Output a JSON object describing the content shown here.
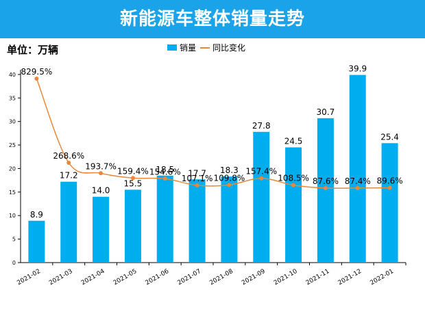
{
  "header": {
    "title": "新能源车整体销量走势"
  },
  "unit_label": "单位：万辆",
  "colors": {
    "banner": "#1aa3e8",
    "bar": "#00aeef",
    "line": "#e8883a",
    "point": "#e8883a",
    "axis": "#000000"
  },
  "chart_data": {
    "type": "bar",
    "categories": [
      "2021-02",
      "2021-03",
      "2021-04",
      "2021-05",
      "2021-06",
      "2021-07",
      "2021-08",
      "2021-09",
      "2021-10",
      "2021-11",
      "2021-12",
      "2022-01"
    ],
    "series": [
      {
        "name": "销量",
        "type": "bar",
        "values": [
          8.9,
          17.2,
          14.0,
          15.5,
          18.5,
          17.7,
          18.3,
          27.8,
          24.5,
          30.7,
          39.9,
          25.4
        ]
      },
      {
        "name": "同比变化",
        "type": "line",
        "values": [
          829.5,
          268.6,
          193.7,
          159.4,
          154.6,
          107.1,
          109.8,
          157.4,
          108.5,
          87.6,
          87.4,
          89.6
        ]
      }
    ],
    "bar_labels": [
      "8.9",
      "17.2",
      "14.0",
      "15.5",
      "18.5",
      "17.7",
      "18.3",
      "27.8",
      "24.5",
      "30.7",
      "39.9",
      "25.4"
    ],
    "line_labels": [
      "829.5%",
      "268.6%",
      "193.7%",
      "159.4%",
      "154.6%",
      "107.1%",
      "109.8%",
      "157.4%",
      "108.5%",
      "87.6%",
      "87.4%",
      "89.6%"
    ],
    "y_ticks": [
      0,
      5,
      10,
      15,
      20,
      25,
      30,
      35,
      40
    ],
    "ylim": [
      0,
      41
    ],
    "secondary_axis": "hidden",
    "legend": [
      "销量",
      "同比变化"
    ],
    "legend_position": "top-center",
    "grid": false
  }
}
